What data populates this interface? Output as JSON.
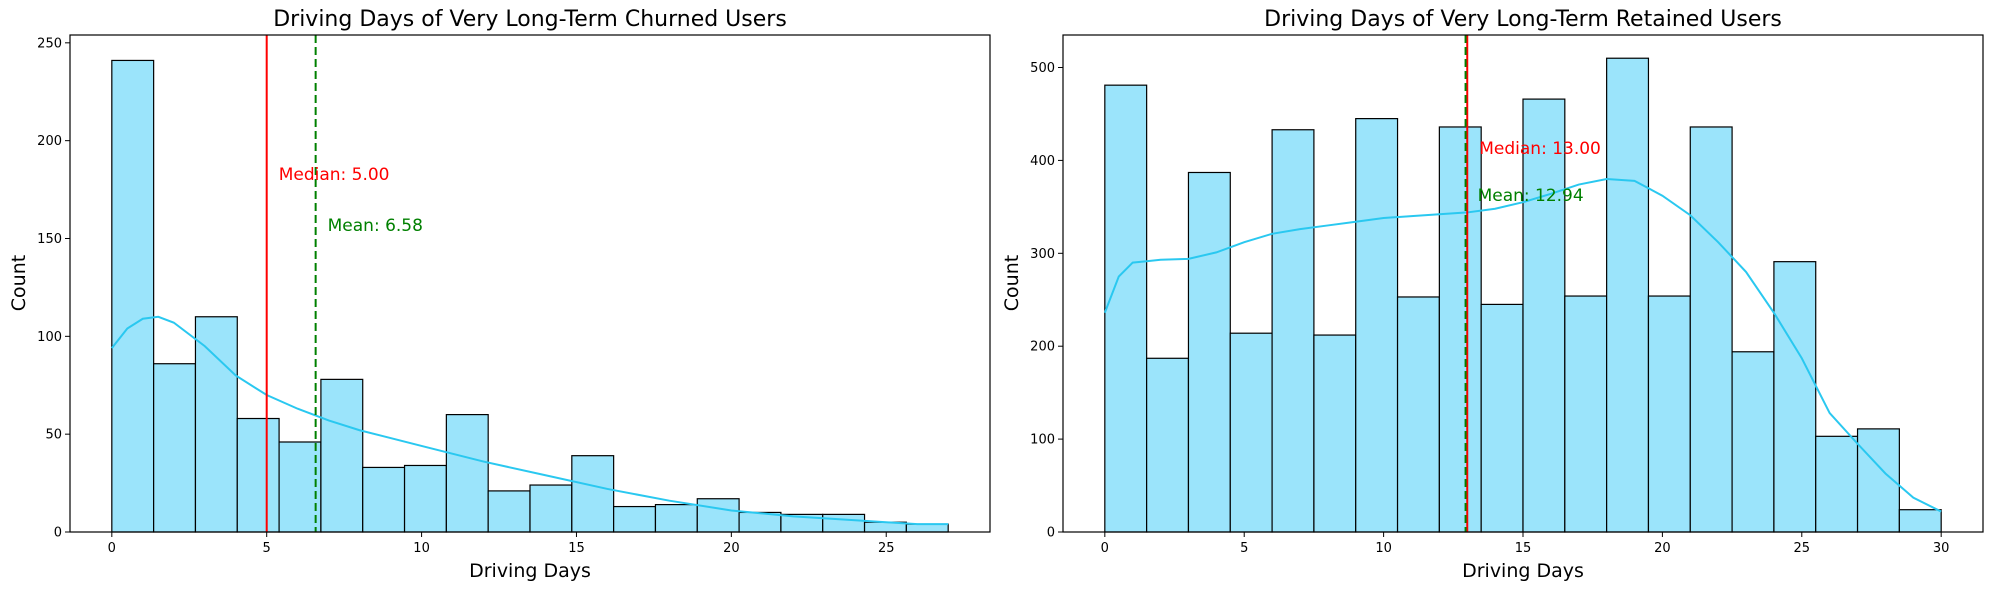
{
  "colors": {
    "bar_fill": "#9be4fb",
    "bar_stroke": "#000000",
    "kde": "#2ac8f0",
    "median": "#ff0000",
    "mean": "#008000"
  },
  "chart_data": [
    {
      "type": "bar",
      "title": "Driving Days of Very Long-Term Churned Users",
      "xlabel": "Driving Days",
      "ylabel": "Count",
      "xlim": [
        -1.35,
        28.35
      ],
      "ylim": [
        0,
        254
      ],
      "xticks": [
        0,
        5,
        10,
        15,
        20,
        25
      ],
      "yticks": [
        0,
        50,
        100,
        150,
        200,
        250
      ],
      "bin_edges": [
        0,
        1.35,
        2.7,
        4.05,
        5.4,
        6.75,
        8.1,
        9.45,
        10.8,
        12.15,
        13.5,
        14.85,
        16.2,
        17.55,
        18.9,
        20.25,
        21.6,
        22.95,
        24.3,
        25.65,
        27.0
      ],
      "values": [
        241,
        86,
        110,
        58,
        46,
        78,
        33,
        34,
        60,
        21,
        24,
        39,
        13,
        14,
        17,
        10,
        9,
        9,
        5,
        4
      ],
      "kde": {
        "x": [
          0,
          0.5,
          1,
          1.5,
          2,
          3,
          4,
          5,
          6,
          7,
          8,
          10,
          12,
          14,
          16,
          18,
          20,
          22,
          24,
          26,
          27
        ],
        "y": [
          94,
          104,
          109,
          110,
          107,
          95,
          80,
          70,
          63,
          57,
          52,
          44,
          36,
          29,
          22,
          16,
          11,
          8,
          6,
          4,
          4
        ]
      },
      "median": {
        "value": 5.0,
        "label": "Median: 5.00"
      },
      "mean": {
        "value": 6.58,
        "label": "Mean: 6.58"
      }
    },
    {
      "type": "bar",
      "title": "Driving Days of Very Long-Term Retained Users",
      "xlabel": "Driving Days",
      "ylabel": "Count",
      "xlim": [
        -1.5,
        31.5
      ],
      "ylim": [
        0,
        535
      ],
      "xticks": [
        0,
        5,
        10,
        15,
        20,
        25,
        30
      ],
      "yticks": [
        0,
        100,
        200,
        300,
        400,
        500
      ],
      "bin_edges": [
        0,
        1.5,
        3,
        4.5,
        6,
        7.5,
        9,
        10.5,
        12,
        13.5,
        15,
        16.5,
        18,
        19.5,
        21,
        22.5,
        24,
        25.5,
        27,
        28.5,
        30
      ],
      "values": [
        481,
        187,
        387,
        214,
        433,
        212,
        445,
        253,
        436,
        245,
        466,
        254,
        510,
        254,
        436,
        194,
        291,
        103,
        111,
        24
      ],
      "kde": {
        "x": [
          0,
          0.5,
          1,
          2,
          3,
          4,
          5,
          6,
          7,
          8,
          9,
          10,
          11,
          12,
          13,
          14,
          15,
          16,
          17,
          18,
          19,
          20,
          21,
          22,
          23,
          24,
          25,
          26,
          27,
          28,
          29,
          30
        ],
        "y": [
          236,
          275,
          290,
          293,
          294,
          301,
          312,
          321,
          326,
          330,
          334,
          338,
          340,
          342,
          344,
          348,
          355,
          364,
          374,
          380,
          378,
          362,
          341,
          312,
          280,
          236,
          187,
          128,
          95,
          63,
          37,
          22
        ]
      },
      "median": {
        "value": 13.0,
        "label": "Median: 13.00"
      },
      "mean": {
        "value": 12.94,
        "label": "Mean: 12.94"
      }
    }
  ]
}
